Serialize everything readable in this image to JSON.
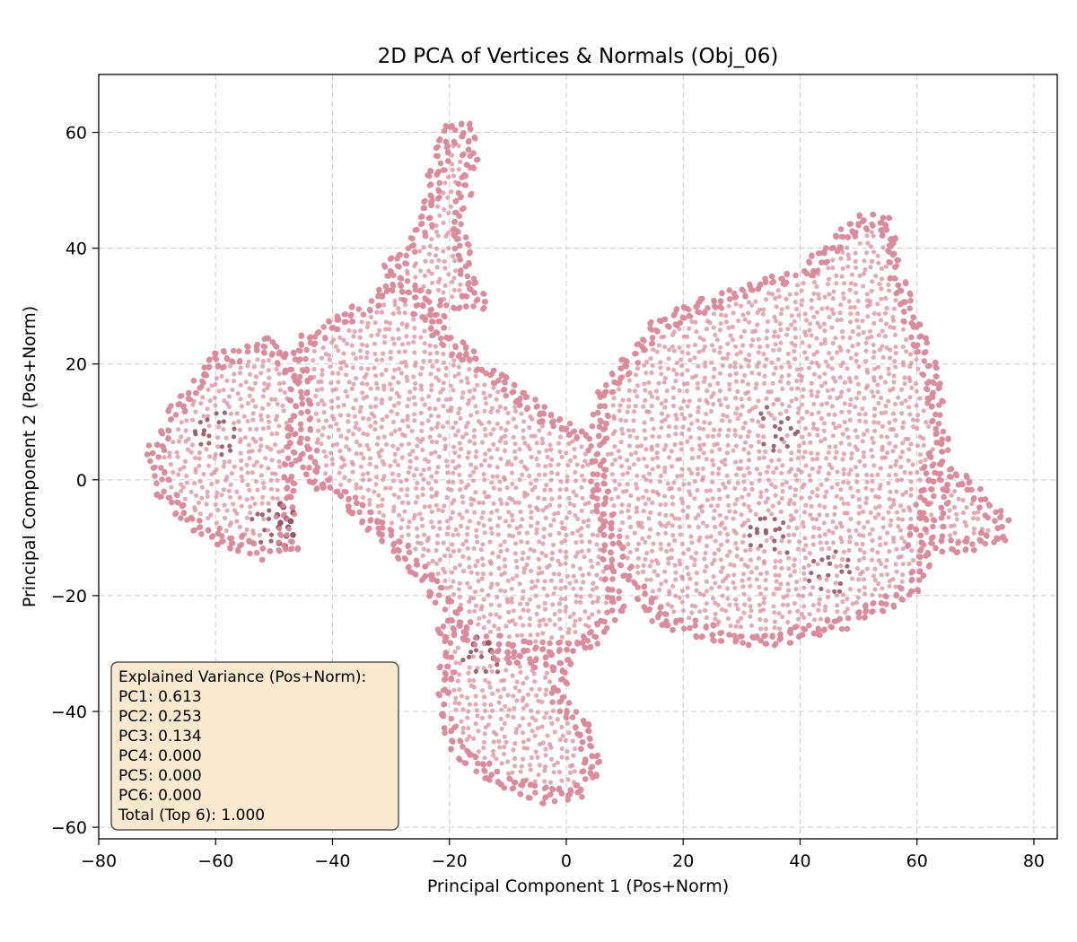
{
  "chart_data": {
    "type": "scatter",
    "title": "2D PCA of Vertices & Normals (Obj_06)",
    "xlabel": "Principal Component 1 (Pos+Norm)",
    "ylabel": "Principal Component 2 (Pos+Norm)",
    "xlim": [
      -80,
      84
    ],
    "ylim": [
      -62,
      70
    ],
    "xticks": [
      -80,
      -60,
      -40,
      -20,
      0,
      20,
      40,
      60,
      80
    ],
    "yticks": [
      -60,
      -40,
      -20,
      0,
      20,
      40,
      60
    ],
    "xtick_labels": [
      "−80",
      "−60",
      "−40",
      "−20",
      "0",
      "20",
      "40",
      "60",
      "80"
    ],
    "ytick_labels": [
      "−60",
      "−40",
      "−20",
      "0",
      "20",
      "40",
      "60"
    ],
    "grid": true,
    "point_color": "#d98a99",
    "point_color_dark": "#8e4c5c",
    "series": [
      {
        "shape_regions": [
          {
            "part": "left-paw",
            "outline": [
              [
                -60,
                22
              ],
              [
                -50,
                25
              ],
              [
                -45,
                18
              ],
              [
                -45,
                5
              ],
              [
                -47,
                -8
              ],
              [
                -45,
                -13
              ],
              [
                -52,
                -14
              ],
              [
                -63,
                -10
              ],
              [
                -70,
                -3
              ],
              [
                -72,
                5
              ],
              [
                -67,
                14
              ]
            ]
          },
          {
            "part": "body",
            "outline": [
              [
                -47,
                24
              ],
              [
                -35,
                31
              ],
              [
                -28,
                36
              ],
              [
                -24,
                30
              ],
              [
                -18,
                24
              ],
              [
                -8,
                16
              ],
              [
                0,
                10
              ],
              [
                6,
                8
              ],
              [
                8,
                -8
              ],
              [
                10,
                -22
              ],
              [
                5,
                -29
              ],
              [
                -5,
                -31
              ],
              [
                -15,
                -29
              ],
              [
                -22,
                -22
              ],
              [
                -30,
                -12
              ],
              [
                -38,
                -5
              ],
              [
                -45,
                0
              ]
            ]
          },
          {
            "part": "top-ear",
            "outline": [
              [
                -32,
                36
              ],
              [
                -26,
                43
              ],
              [
                -24,
                52
              ],
              [
                -21,
                62
              ],
              [
                -16,
                62
              ],
              [
                -15,
                55
              ],
              [
                -17,
                46
              ],
              [
                -16,
                36
              ],
              [
                -12,
                30
              ],
              [
                -22,
                28
              ],
              [
                -29,
                33
              ]
            ]
          },
          {
            "part": "head",
            "outline": [
              [
                5,
                15
              ],
              [
                15,
                28
              ],
              [
                25,
                32
              ],
              [
                40,
                37
              ],
              [
                50,
                46
              ],
              [
                56,
                46
              ],
              [
                58,
                35
              ],
              [
                64,
                18
              ],
              [
                66,
                2
              ],
              [
                65,
                -10
              ],
              [
                60,
                -20
              ],
              [
                48,
                -26
              ],
              [
                35,
                -29
              ],
              [
                25,
                -28
              ],
              [
                15,
                -25
              ],
              [
                8,
                -15
              ],
              [
                4,
                -2
              ],
              [
                4,
                8
              ]
            ]
          },
          {
            "part": "side-ear",
            "outline": [
              [
                62,
                5
              ],
              [
                70,
                0
              ],
              [
                76,
                -7
              ],
              [
                75,
                -11
              ],
              [
                66,
                -13
              ],
              [
                58,
                -12
              ],
              [
                60,
                -2
              ]
            ]
          },
          {
            "part": "bottom-paw",
            "outline": [
              [
                -22,
                -22
              ],
              [
                -22,
                -30
              ],
              [
                -22,
                -40
              ],
              [
                -20,
                -47
              ],
              [
                -12,
                -53
              ],
              [
                -4,
                -56
              ],
              [
                3,
                -55
              ],
              [
                6,
                -50
              ],
              [
                4,
                -42
              ],
              [
                0,
                -37
              ],
              [
                1,
                -31
              ],
              [
                -10,
                -29
              ],
              [
                -16,
                -26
              ]
            ]
          }
        ],
        "dense_spots": [
          [
            36,
            9
          ],
          [
            35,
            -10
          ],
          [
            45,
            -16
          ],
          [
            -50,
            -8
          ],
          [
            -14,
            -31
          ],
          [
            -60,
            8
          ]
        ]
      }
    ],
    "annotation": {
      "placement": "bottom-left",
      "lines": [
        "Explained Variance (Pos+Norm):",
        "PC1: 0.613",
        "PC2: 0.253",
        "PC3: 0.134",
        "PC4: 0.000",
        "PC5: 0.000",
        "PC6: 0.000",
        "Total (Top 6): 1.000"
      ],
      "background": "#f8e9cf",
      "border": "#555555"
    }
  }
}
